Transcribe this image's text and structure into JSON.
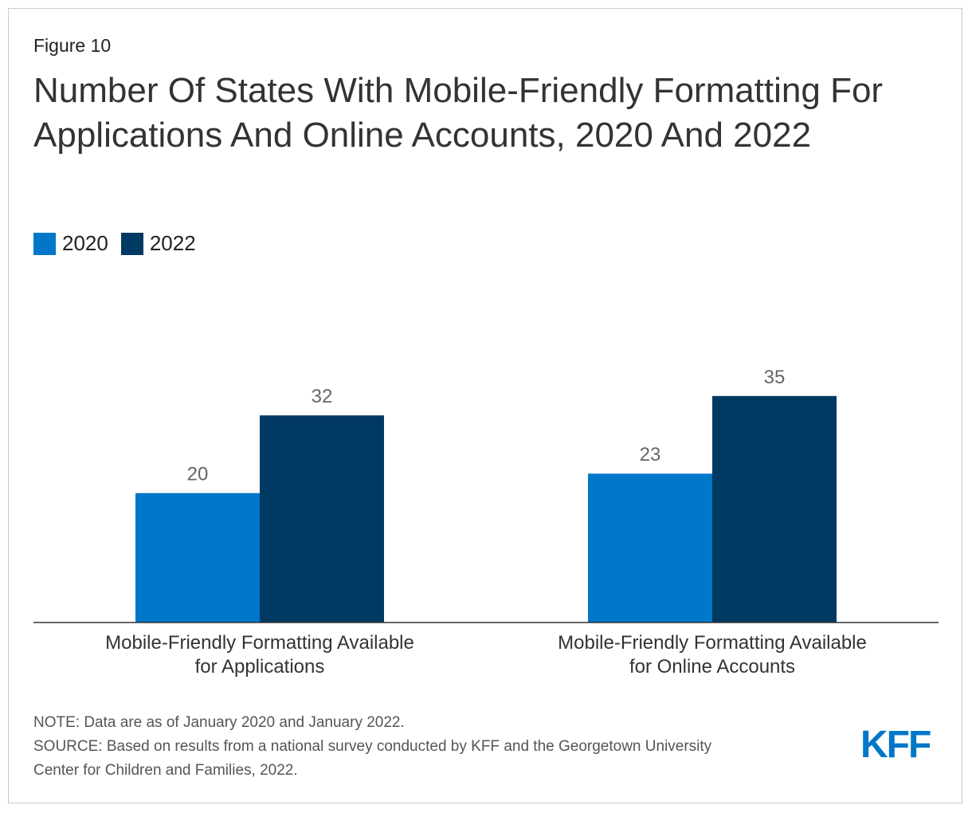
{
  "figure_label": "Figure 10",
  "title": "Number Of States With Mobile-Friendly Formatting For Applications And Online Accounts, 2020 And 2022",
  "legend": [
    {
      "label": "2020",
      "color": "#0077c8"
    },
    {
      "label": "2022",
      "color": "#003a63"
    }
  ],
  "chart_data": {
    "type": "bar",
    "categories": [
      [
        "Mobile-Friendly Formatting Available",
        "for Applications"
      ],
      [
        "Mobile-Friendly Formatting Available",
        "for Online Accounts"
      ]
    ],
    "series": [
      {
        "name": "2020",
        "values": [
          20,
          23
        ],
        "color": "#0077c8"
      },
      {
        "name": "2022",
        "values": [
          32,
          35
        ],
        "color": "#003a63"
      }
    ],
    "ylim": [
      0,
      50
    ],
    "grid": false,
    "legend_position": "top-left"
  },
  "note": "NOTE: Data are as of January 2020 and January 2022.",
  "source_line1": "SOURCE: Based on results from a national survey conducted by KFF and the Georgetown University",
  "source_line2": "Center for Children and Families, 2022.",
  "logo_text": "KFF",
  "logo_color": "#0077c8"
}
